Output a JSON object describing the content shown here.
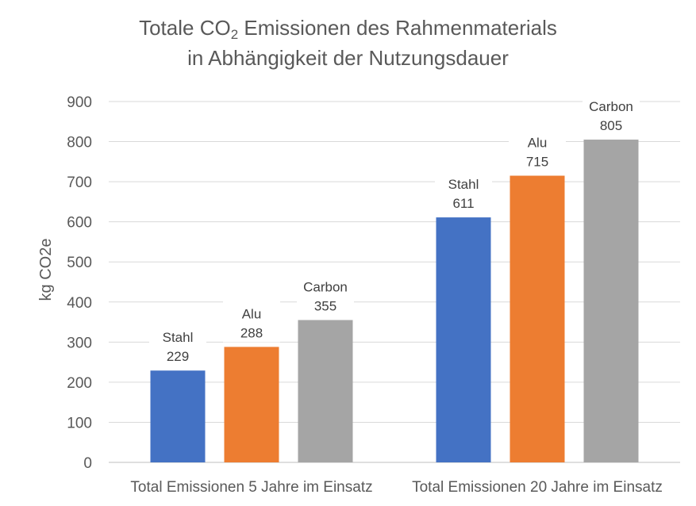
{
  "chart_data": {
    "type": "bar",
    "title_line1_pre": "Totale CO",
    "title_line1_sub": "2",
    "title_line1_post": " Emissionen des Rahmenmaterials",
    "title_line2": "in Abhängigkeit der Nutzungsdauer",
    "ylabel": "kg CO2e",
    "xlabel": "",
    "ylim": [
      0,
      900
    ],
    "yticks": [
      0,
      100,
      200,
      300,
      400,
      500,
      600,
      700,
      800,
      900
    ],
    "grid": true,
    "categories": [
      "Total Emissionen 5 Jahre im Einsatz",
      "Total Emissionen 20 Jahre im Einsatz"
    ],
    "series": [
      {
        "name": "Stahl",
        "color": "#4472C4",
        "values": [
          229,
          611
        ]
      },
      {
        "name": "Alu",
        "color": "#ED7D31",
        "values": [
          288,
          715
        ]
      },
      {
        "name": "Carbon",
        "color": "#A5A5A5",
        "values": [
          355,
          805
        ]
      }
    ]
  }
}
